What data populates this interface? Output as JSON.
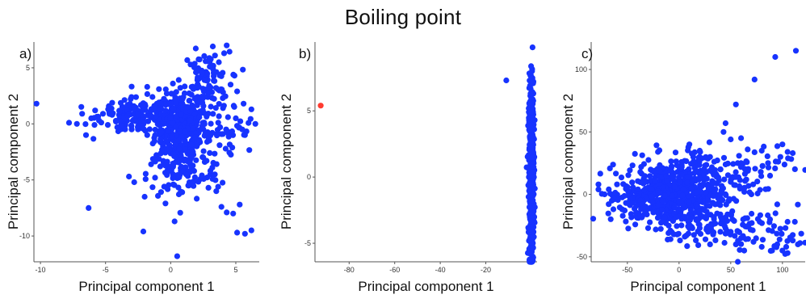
{
  "figure": {
    "title": "Boiling point"
  },
  "colors": {
    "points": "#1733ff",
    "highlight": "#ff3b30"
  },
  "chart_data": [
    {
      "type": "scatter",
      "panel": "a)",
      "xlabel": "Principal component 1",
      "ylabel": "Principal component 2",
      "xlim": [
        -10.5,
        6.8
      ],
      "ylim": [
        -12.3,
        7.3
      ],
      "xticks": [
        -10,
        -5,
        0,
        5
      ],
      "yticks": [
        -10,
        -5,
        0,
        5
      ],
      "grid": false,
      "series": [
        {
          "color": "#1733ff",
          "points": [
            [
              -10.3,
              1.8
            ],
            [
              -7.8,
              0.1
            ],
            [
              -7.2,
              0
            ],
            [
              -6.8,
              0.9
            ],
            [
              -6.5,
              -1
            ],
            [
              -6.3,
              -7.5
            ],
            [
              -6.1,
              0.5
            ],
            [
              -5.8,
              1.2
            ],
            [
              -5.5,
              0.3
            ],
            [
              -5.2,
              0.9
            ],
            [
              -4.8,
              1.3
            ],
            [
              -4.5,
              0.8
            ],
            [
              -4.2,
              0.2
            ],
            [
              -3.9,
              1.1
            ],
            [
              -3.5,
              -0.5
            ],
            [
              -3.3,
              0.7
            ],
            [
              -3,
              -0.5
            ],
            [
              -2.8,
              1.4
            ],
            [
              -2.5,
              0.8
            ],
            [
              -2.2,
              1.6
            ],
            [
              -2,
              0.2
            ],
            [
              -1.8,
              -1
            ],
            [
              -1.5,
              0.7
            ],
            [
              -1.2,
              1.5
            ],
            [
              -1,
              0
            ],
            [
              -0.8,
              -1.6
            ],
            [
              -3.2,
              -4.7
            ],
            [
              -2.8,
              -5.2
            ],
            [
              -2,
              -6.5
            ],
            [
              -2.1,
              -9.6
            ],
            [
              -1.5,
              -3.6
            ],
            [
              -1.2,
              -4.8
            ],
            [
              -0.8,
              -3.8
            ],
            [
              -0.4,
              -7.1
            ],
            [
              0.3,
              -8.7
            ],
            [
              0.5,
              -11.8
            ],
            [
              -0.5,
              -5.6
            ],
            [
              -0.1,
              -4.2
            ],
            [
              0.2,
              -5.4
            ],
            [
              0.7,
              -3.2
            ],
            [
              0.9,
              -4.3
            ],
            [
              1.4,
              -5.5
            ],
            [
              1.8,
              -4.2
            ],
            [
              2.4,
              -4.6
            ],
            [
              2.9,
              -5.7
            ],
            [
              3.2,
              -3.9
            ],
            [
              3.5,
              -6
            ],
            [
              3.9,
              -7.4
            ],
            [
              4.3,
              -7.9
            ],
            [
              4.8,
              -8
            ],
            [
              5.1,
              -9.7
            ],
            [
              5.7,
              -9.8
            ],
            [
              6.2,
              -9.5
            ],
            [
              5.3,
              -7.2
            ],
            [
              2.5,
              -3
            ],
            [
              -0.3,
              -2.2
            ],
            [
              0.2,
              -2.7
            ],
            [
              0.6,
              -1.5
            ],
            [
              0,
              0.5
            ],
            [
              0.4,
              -0.3
            ],
            [
              0.8,
              0.8
            ],
            [
              1.1,
              -0.7
            ],
            [
              1.5,
              0.3
            ],
            [
              1.3,
              1.5
            ],
            [
              1.9,
              -1.2
            ],
            [
              2.2,
              0.6
            ],
            [
              0.9,
              2.2
            ],
            [
              1.6,
              2.6
            ],
            [
              2.1,
              3.4
            ],
            [
              2.6,
              3.9
            ],
            [
              2.4,
              4.5
            ],
            [
              3,
              5.1
            ],
            [
              3.3,
              4.6
            ],
            [
              3.7,
              5.5
            ],
            [
              4.1,
              6.3
            ],
            [
              4.3,
              7
            ],
            [
              3.4,
              6.1
            ],
            [
              2.9,
              2.7
            ],
            [
              3.6,
              3.1
            ],
            [
              4,
              2.3
            ],
            [
              4.6,
              3.5
            ],
            [
              5.1,
              2.9
            ],
            [
              5.6,
              1.8
            ],
            [
              6.2,
              1.3
            ],
            [
              6.5,
              0
            ],
            [
              5,
              0.5
            ],
            [
              4.4,
              0.6
            ],
            [
              3.8,
              -0.3
            ],
            [
              3.2,
              -0.8
            ],
            [
              -0.9,
              1.9
            ],
            [
              -1.4,
              2.4
            ],
            [
              -1.8,
              3.3
            ],
            [
              -0.9,
              3.1
            ],
            [
              -0.3,
              2.7
            ],
            [
              0.4,
              1.9
            ],
            [
              -0.4,
              1.2
            ],
            [
              0.1,
              -1.1
            ],
            [
              -0.2,
              -0.6
            ],
            [
              1.1,
              -2.3
            ],
            [
              1.6,
              -3
            ],
            [
              2,
              -2
            ],
            [
              2.8,
              -1.6
            ],
            [
              4.9,
              4.3
            ],
            [
              5.5,
              -0.5
            ],
            [
              3,
              -2.6
            ],
            [
              -4.1,
              -0.3
            ],
            [
              -2.5,
              -0.2
            ]
          ],
          "cluster_hints": [
            [
              0.8,
              -0.4,
              1.0,
              1.6,
              340
            ],
            [
              -2.3,
              0.7,
              1.6,
              0.8,
              150
            ],
            [
              2.7,
              3.8,
              0.9,
              1.3,
              90
            ],
            [
              1.0,
              -4.5,
              1.4,
              1.2,
              80
            ],
            [
              4.2,
              -1.0,
              1.2,
              1.4,
              40
            ]
          ]
        }
      ]
    },
    {
      "type": "scatter",
      "panel": "b)",
      "xlabel": "Principal component 1",
      "ylabel": "Principal component 2",
      "xlim": [
        -95,
        2.5
      ],
      "ylim": [
        -6.4,
        10.2
      ],
      "xticks": [
        -80,
        -60,
        -40,
        -20
      ],
      "yticks": [
        -5,
        0,
        5
      ],
      "grid": false,
      "series": [
        {
          "color": "#1733ff",
          "points": [
            [
              -11,
              7.3
            ],
            [
              0.5,
              9.8
            ],
            [
              0.3,
              8
            ],
            [
              -0.5,
              -6.2
            ],
            [
              0.4,
              -6.3
            ],
            [
              -0.6,
              6.9
            ],
            [
              0.6,
              7.1
            ]
          ],
          "cluster_hints": [
            [
              0,
              0.2,
              0.55,
              3.4,
              520
            ]
          ]
        },
        {
          "color": "#ff3b30",
          "points": [
            [
              -92.5,
              5.4
            ]
          ]
        }
      ]
    },
    {
      "type": "scatter",
      "panel": "c)",
      "xlabel": "Principal component 1",
      "ylabel": "Principal component 2",
      "xlim": [
        -85,
        122
      ],
      "ylim": [
        -54,
        122
      ],
      "xticks": [
        -50,
        0,
        50,
        100
      ],
      "yticks": [
        -50,
        0,
        50,
        100
      ],
      "grid": false,
      "series": [
        {
          "color": "#1733ff",
          "points": [
            [
              -78,
              8
            ],
            [
              -78,
              4
            ],
            [
              -72,
              0
            ],
            [
              -68,
              4
            ],
            [
              -65,
              -5
            ],
            [
              -60,
              8
            ],
            [
              -55,
              -12
            ],
            [
              113,
              115
            ],
            [
              93,
              110
            ],
            [
              73,
              92
            ],
            [
              55,
              72
            ],
            [
              45,
              57
            ],
            [
              43,
              50
            ],
            [
              50,
              44
            ],
            [
              60,
              45
            ],
            [
              80,
              35
            ],
            [
              100,
              40
            ],
            [
              105,
              34
            ],
            [
              110,
              33
            ],
            [
              98,
              30
            ],
            [
              88,
              15
            ],
            [
              95,
              -8
            ],
            [
              105,
              -22
            ],
            [
              112,
              -22
            ],
            [
              88,
              -20
            ],
            [
              78,
              -22
            ],
            [
              67,
              -25
            ],
            [
              110,
              -37
            ],
            [
              115,
              -40
            ],
            [
              117,
              -39
            ],
            [
              100,
              -45
            ],
            [
              90,
              -45
            ],
            [
              80,
              -42
            ],
            [
              72,
              -38
            ],
            [
              60,
              -35
            ],
            [
              50,
              -30
            ],
            [
              40,
              -30
            ],
            [
              28,
              -30
            ],
            [
              20,
              -27
            ],
            [
              10,
              -20
            ],
            [
              -10,
              -25
            ],
            [
              -5,
              -32
            ],
            [
              7,
              -33
            ],
            [
              30,
              -40
            ],
            [
              55,
              -40
            ],
            [
              63,
              -45
            ],
            [
              95,
              -40
            ],
            [
              105,
              -47
            ],
            [
              70,
              0
            ],
            [
              60,
              5
            ],
            [
              50,
              10
            ],
            [
              40,
              20
            ],
            [
              45,
              0
            ],
            [
              35,
              -8
            ],
            [
              40,
              -16
            ],
            [
              62,
              -20
            ],
            [
              30,
              30
            ],
            [
              20,
              35
            ],
            [
              10,
              40
            ],
            [
              60,
              25
            ],
            [
              45,
              24
            ]
          ],
          "cluster_hints": [
            [
              -10,
              0,
              22,
              13,
              420
            ],
            [
              20,
              10,
              22,
              15,
              140
            ],
            [
              30,
              -22,
              22,
              9,
              80
            ],
            [
              -40,
              -3,
              15,
              9,
              60
            ],
            [
              70,
              20,
              20,
              12,
              50
            ],
            [
              80,
              -30,
              22,
              8,
              45
            ]
          ]
        }
      ]
    }
  ]
}
